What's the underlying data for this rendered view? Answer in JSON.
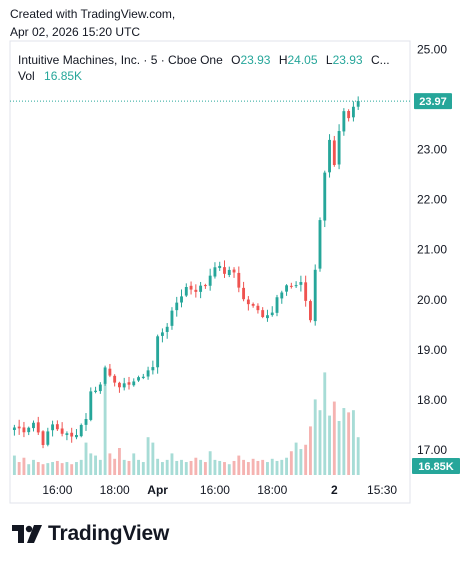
{
  "header": {
    "created_with": "Created with TradingView.com,",
    "timestamp": "Apr 02, 2026 15:20 UTC"
  },
  "legend": {
    "symbol": "Intuitive Machines, Inc. · 5 · Cboe One",
    "open_label": "O",
    "open": "23.93",
    "high_label": "H",
    "high": "24.05",
    "low_label": "L",
    "low": "23.93",
    "close_label": "C...",
    "vol_label": "Vol",
    "vol": "16.85K"
  },
  "colors": {
    "up": "#26a69a",
    "down": "#ef5350",
    "up_volume": "#a7dcd6",
    "down_volume": "#f5b3b1",
    "price_line": "#26a69a",
    "text": "#131722",
    "axis_text": "#131722"
  },
  "logo": {
    "text": "TradingView",
    "icon": "tradingview-logo-icon"
  },
  "chart_data": {
    "type": "candlestick",
    "title": "Intuitive Machines, Inc. · 5 · Cboe One",
    "interval": "5",
    "y_ticks": [
      "25.00",
      "24.00",
      "23.00",
      "22.00",
      "21.00",
      "20.00",
      "19.00",
      "18.00",
      "17.00"
    ],
    "y_tick_values": [
      25,
      24,
      23,
      22,
      21,
      20,
      19,
      18,
      17
    ],
    "ylim": [
      16.6,
      25.05
    ],
    "x_ticks": [
      "16:00",
      "18:00",
      "Apr",
      "16:00",
      "18:00",
      "2",
      "15:30"
    ],
    "x_tick_positions": [
      9,
      21,
      30,
      42,
      54,
      67,
      77
    ],
    "x_tick_bold": [
      false,
      false,
      true,
      false,
      false,
      true,
      false
    ],
    "n_bars": 80,
    "last_price": 23.97,
    "last_price_label": "23.97",
    "last_volume_label": "16.85K",
    "grid": false,
    "ohlc_anchors": [
      [
        0,
        17.45
      ],
      [
        2,
        17.4
      ],
      [
        4,
        17.55
      ],
      [
        6,
        17.15
      ],
      [
        8,
        17.5
      ],
      [
        10,
        17.35
      ],
      [
        12,
        17.25
      ],
      [
        13,
        17.35
      ],
      [
        15,
        17.65
      ],
      [
        16,
        18.15
      ],
      [
        18,
        18.3
      ],
      [
        19,
        18.65
      ],
      [
        21,
        18.4
      ],
      [
        22,
        18.2
      ],
      [
        24,
        18.35
      ],
      [
        26,
        18.4
      ],
      [
        28,
        18.6
      ],
      [
        29,
        18.65
      ],
      [
        30,
        19.25
      ],
      [
        32,
        19.5
      ],
      [
        34,
        19.95
      ],
      [
        36,
        20.25
      ],
      [
        38,
        20.2
      ],
      [
        40,
        20.3
      ],
      [
        42,
        20.7
      ],
      [
        44,
        20.55
      ],
      [
        46,
        20.55
      ],
      [
        48,
        20.0
      ],
      [
        50,
        19.85
      ],
      [
        52,
        19.7
      ],
      [
        54,
        19.75
      ],
      [
        55,
        20.1
      ],
      [
        57,
        20.3
      ],
      [
        58,
        20.25
      ],
      [
        60,
        20.3
      ],
      [
        61,
        20.0
      ],
      [
        62,
        19.6
      ],
      [
        63,
        20.6
      ],
      [
        64,
        21.6
      ],
      [
        65,
        22.5
      ],
      [
        66,
        23.2
      ],
      [
        67,
        22.7
      ],
      [
        68,
        23.4
      ],
      [
        69,
        23.8
      ],
      [
        70,
        23.6
      ],
      [
        71,
        23.9
      ],
      [
        72,
        23.97
      ]
    ],
    "volume_profile": [
      0.18,
      0.12,
      0.16,
      0.1,
      0.14,
      0.12,
      0.1,
      0.11,
      0.12,
      0.13,
      0.11,
      0.12,
      0.1,
      0.12,
      0.14,
      0.3,
      0.2,
      0.18,
      0.14,
      0.85,
      0.2,
      0.15,
      0.25,
      0.14,
      0.13,
      0.2,
      0.14,
      0.12,
      0.35,
      0.3,
      0.15,
      0.12,
      0.14,
      0.2,
      0.13,
      0.14,
      0.12,
      0.13,
      0.16,
      0.14,
      0.12,
      0.22,
      0.14,
      0.13,
      0.12,
      0.1,
      0.13,
      0.18,
      0.14,
      0.12,
      0.15,
      0.13,
      0.14,
      0.12,
      0.15,
      0.13,
      0.14,
      0.16,
      0.22,
      0.3,
      0.24,
      0.28,
      0.45,
      0.7,
      0.6,
      0.95,
      0.55,
      0.68,
      0.5,
      0.62,
      0.58,
      0.6,
      0.35
    ]
  }
}
